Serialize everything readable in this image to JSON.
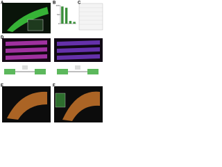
{
  "panels": [
    {
      "label": "A"
    },
    {
      "label": "B"
    },
    {
      "label": "C"
    },
    {
      "label": "D"
    },
    {
      "label": "E"
    },
    {
      "label": "F"
    }
  ],
  "chart_data": {
    "type": "bar",
    "categories": [
      null,
      null,
      null,
      null
    ],
    "values": [
      95,
      88,
      15,
      10
    ],
    "color": "#3a8f3a",
    "ylim": [
      0,
      100
    ],
    "yticks": [
      0,
      50,
      100
    ]
  }
}
